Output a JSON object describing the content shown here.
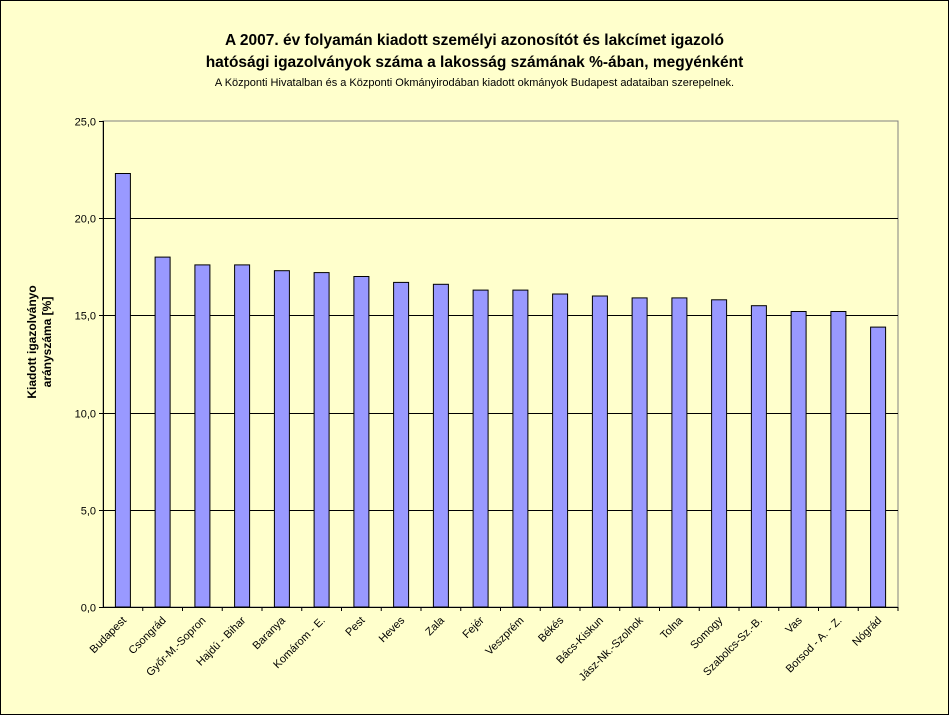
{
  "chart_data": {
    "type": "bar",
    "title_line_1": "A 2007. év folyamán kiadott személyi azonosítót és lakcímet igazoló",
    "title_line_2": "hatósági igazolványok száma a lakosság  számának %-ában, megyénként",
    "subtitle": "A Központi Hivatalban és a Központi Okmányirodában kiadott okmányok Budapest adataiban szerepelnek.",
    "ylabel_line_1": "Kiadott igazolványo",
    "ylabel_line_2": "arányszáma [%]",
    "xlabel": "",
    "ylim": [
      0,
      25
    ],
    "y_ticks": [
      "0,0",
      "5,0",
      "10,0",
      "15,0",
      "20,0",
      "25,0"
    ],
    "grid": true,
    "categories": [
      "Budapest",
      "Csongrád",
      "Győr-M.-Sopron",
      "Hajdú - Bihar",
      "Baranya",
      "Komárom - E.",
      "Pest",
      "Heves",
      "Zala",
      "Fejér",
      "Veszprém",
      "Békés",
      "Bács-Kiskun",
      "Jász-Nk.-Szolnok",
      "Tolna",
      "Somogy",
      "Szabolcs-Sz.-B.",
      "Vas",
      "Borsod - A. - Z.",
      "Nógrád"
    ],
    "values": [
      22.3,
      18.0,
      17.6,
      17.6,
      17.3,
      17.2,
      17.0,
      16.7,
      16.6,
      16.3,
      16.3,
      16.1,
      16.0,
      15.9,
      15.9,
      15.8,
      15.5,
      15.2,
      15.2,
      14.4
    ],
    "colors": {
      "bar": "#9999ff",
      "bar_stroke": "#000000",
      "plot_bg": "#ffffcc",
      "grid": "#000000"
    }
  }
}
